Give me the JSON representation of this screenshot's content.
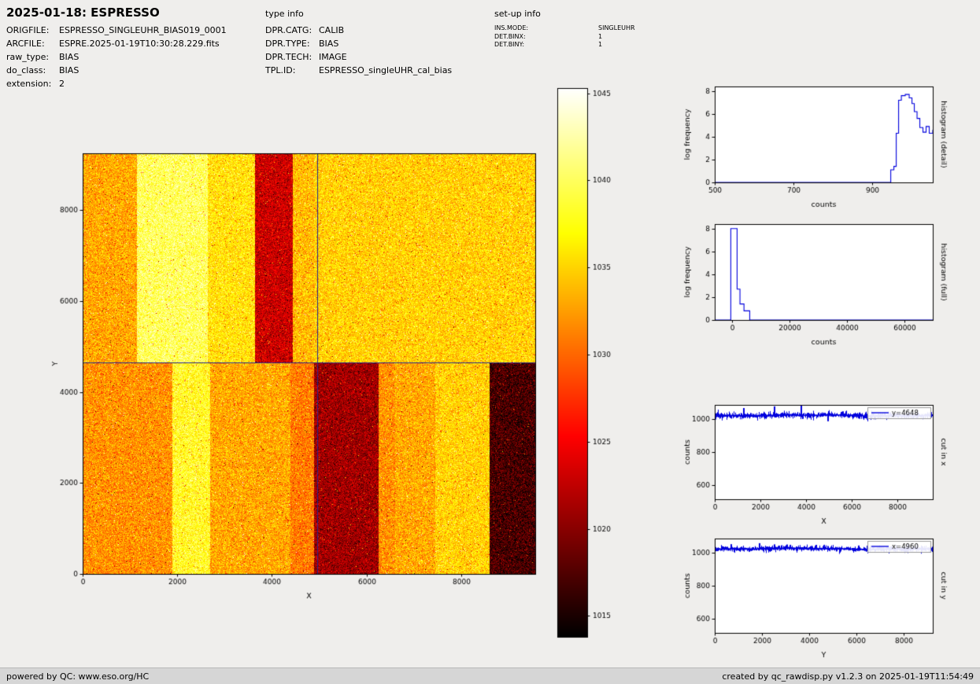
{
  "page": {
    "title": "2025-01-18: ESPRESSO",
    "footer_left": "powered by QC: www.eso.org/HC",
    "footer_right": "created by qc_rawdisp.py v1.2.3 on 2025-01-19T11:54:49",
    "colors": {
      "background": "#efeeec",
      "footer_bg": "#d6d6d6",
      "plot_bg": "#ffffff",
      "line_blue": "#0000dd",
      "crosshair_blue": "#26268c"
    }
  },
  "metadata": {
    "file_info": [
      {
        "label": "ORIGFILE:",
        "value": "ESPRESSO_SINGLEUHR_BIAS019_0001"
      },
      {
        "label": "ARCFILE:",
        "value": "ESPRE.2025-01-19T10:30:28.229.fits"
      },
      {
        "label": "raw_type:",
        "value": "BIAS"
      },
      {
        "label": "do_class:",
        "value": "BIAS"
      },
      {
        "label": "extension:",
        "value": "2"
      }
    ],
    "type_info": {
      "heading": "type info",
      "rows": [
        {
          "label": "DPR.CATG:",
          "value": "CALIB"
        },
        {
          "label": "DPR.TYPE:",
          "value": "BIAS"
        },
        {
          "label": "DPR.TECH:",
          "value": "IMAGE"
        },
        {
          "label": "TPL.ID:",
          "value": "ESPRESSO_singleUHR_cal_bias"
        }
      ]
    },
    "setup_info": {
      "heading": "set-up info",
      "rows": [
        {
          "label": "INS.MODE:",
          "value": "SINGLEUHR"
        },
        {
          "label": "DET.BINX:",
          "value": "1"
        },
        {
          "label": "DET.BINY:",
          "value": "1"
        }
      ]
    }
  },
  "chart_data": [
    {
      "id": "bias-image",
      "type": "heatmap",
      "title": "raw bias frame display",
      "xlabel": "X",
      "ylabel": "Y",
      "xlim": [
        0,
        9570
      ],
      "ylim": [
        0,
        9250
      ],
      "xticks": [
        0,
        2000,
        4000,
        6000,
        8000
      ],
      "yticks": [
        0,
        2000,
        4000,
        6000,
        8000
      ],
      "cmap": "hot",
      "vmin": 1013.8,
      "vmax": 1045.3,
      "noise_sigma": 2.2,
      "outlier_fraction": 0.015,
      "split": {
        "x": 4900,
        "y": 4648
      },
      "crosshair": {
        "x": 4960,
        "y": 4648,
        "color": "#26268c"
      },
      "bands": [
        {
          "region": "top-left",
          "x0": 0,
          "x1": 1150,
          "y0": 4648,
          "y1": 9250,
          "value": 1033
        },
        {
          "region": "top-left",
          "x0": 1150,
          "x1": 2650,
          "y0": 4648,
          "y1": 9250,
          "value": 1040
        },
        {
          "region": "top-left",
          "x0": 2650,
          "x1": 3650,
          "y0": 4648,
          "y1": 9250,
          "value": 1036
        },
        {
          "region": "top-left",
          "x0": 3650,
          "x1": 4450,
          "y0": 4648,
          "y1": 9250,
          "value": 1023
        },
        {
          "region": "top-left",
          "x0": 4450,
          "x1": 4900,
          "y0": 4648,
          "y1": 9250,
          "value": 1034
        },
        {
          "region": "top-right",
          "x0": 4900,
          "x1": 9570,
          "y0": 4648,
          "y1": 9250,
          "value": 1035
        },
        {
          "region": "bottom-left",
          "x0": 0,
          "x1": 1900,
          "y0": 0,
          "y1": 4648,
          "value": 1032
        },
        {
          "region": "bottom-left",
          "x0": 1900,
          "x1": 2700,
          "y0": 0,
          "y1": 4648,
          "value": 1038
        },
        {
          "region": "bottom-left",
          "x0": 2700,
          "x1": 4400,
          "y0": 0,
          "y1": 4648,
          "value": 1033
        },
        {
          "region": "bottom-left",
          "x0": 4400,
          "x1": 4900,
          "y0": 0,
          "y1": 4648,
          "value": 1031
        },
        {
          "region": "bottom-right",
          "x0": 4900,
          "x1": 6250,
          "y0": 0,
          "y1": 4648,
          "value": 1021
        },
        {
          "region": "bottom-right",
          "x0": 6250,
          "x1": 6600,
          "y0": 0,
          "y1": 4648,
          "value": 1032
        },
        {
          "region": "bottom-right",
          "x0": 6600,
          "x1": 7450,
          "y0": 0,
          "y1": 4648,
          "value": 1033
        },
        {
          "region": "bottom-right",
          "x0": 7450,
          "x1": 8600,
          "y0": 0,
          "y1": 4648,
          "value": 1035
        },
        {
          "region": "bottom-right",
          "x0": 8600,
          "x1": 9570,
          "y0": 0,
          "y1": 4648,
          "value": 1017
        }
      ],
      "colorbar": {
        "ticks": [
          1015,
          1020,
          1025,
          1030,
          1035,
          1040,
          1045
        ]
      }
    },
    {
      "id": "hist-detail",
      "type": "line",
      "line_style": "steps",
      "xlabel": "counts",
      "ylabel": "log frequency",
      "side_label": "histogram (detail)",
      "xlim": [
        500,
        1055
      ],
      "ylim": [
        0,
        8.4
      ],
      "xticks": [
        500,
        700,
        900
      ],
      "yticks": [
        0,
        2,
        4,
        6,
        8
      ],
      "color": "#0000dd",
      "x": [
        500,
        940,
        948,
        956,
        962,
        968,
        975,
        985,
        995,
        1002,
        1008,
        1015,
        1022,
        1030,
        1038,
        1046,
        1055
      ],
      "y": [
        0,
        0,
        1.1,
        1.4,
        4.3,
        7.2,
        7.6,
        7.7,
        7.4,
        6.9,
        6.2,
        5.6,
        4.8,
        4.4,
        4.9,
        4.3,
        4.6
      ]
    },
    {
      "id": "hist-full",
      "type": "line",
      "line_style": "steps",
      "xlabel": "counts",
      "ylabel": "log frequency",
      "side_label": "histogram (full)",
      "xlim": [
        -6000,
        70000
      ],
      "ylim": [
        0,
        8.4
      ],
      "xticks": [
        0,
        20000,
        40000,
        60000
      ],
      "yticks": [
        0,
        2,
        4,
        6,
        8
      ],
      "color": "#0000dd",
      "x": [
        -6000,
        -400,
        1800,
        2800,
        4200,
        6200,
        70000
      ],
      "y": [
        0,
        8,
        2.7,
        1.4,
        0.8,
        0,
        0
      ]
    },
    {
      "id": "cut-x",
      "type": "line",
      "line_style": "noise-band",
      "xlabel": "X",
      "ylabel": "counts",
      "side_label": "cut in x",
      "legend": "y=4648",
      "xlim": [
        0,
        9570
      ],
      "ylim": [
        515,
        1085
      ],
      "xticks": [
        0,
        2000,
        4000,
        6000,
        8000
      ],
      "yticks": [
        600,
        800,
        1000
      ],
      "color": "#0000dd",
      "baseline": 1021,
      "noise_sigma": 7,
      "seed": 42,
      "spikes": [
        {
          "x": 1250,
          "amp": 45
        },
        {
          "x": 2620,
          "amp": 55
        },
        {
          "x": 3780,
          "amp": 60
        },
        {
          "x": 5600,
          "amp": 25
        },
        {
          "x": 4960,
          "amp": -35
        }
      ]
    },
    {
      "id": "cut-y",
      "type": "line",
      "line_style": "noise-band",
      "xlabel": "Y",
      "ylabel": "counts",
      "side_label": "cut in y",
      "legend": "x=4960",
      "xlim": [
        0,
        9250
      ],
      "ylim": [
        515,
        1085
      ],
      "xticks": [
        0,
        2000,
        4000,
        6000,
        8000
      ],
      "yticks": [
        600,
        800,
        1000
      ],
      "color": "#0000dd",
      "baseline": 1023,
      "noise_sigma": 6,
      "seed": 1337,
      "spikes": [
        {
          "x": 700,
          "amp": 28
        },
        {
          "x": 1900,
          "amp": 34
        },
        {
          "x": 3050,
          "amp": 26
        },
        {
          "x": 4300,
          "amp": 24
        },
        {
          "x": 6100,
          "amp": 20
        }
      ]
    }
  ]
}
